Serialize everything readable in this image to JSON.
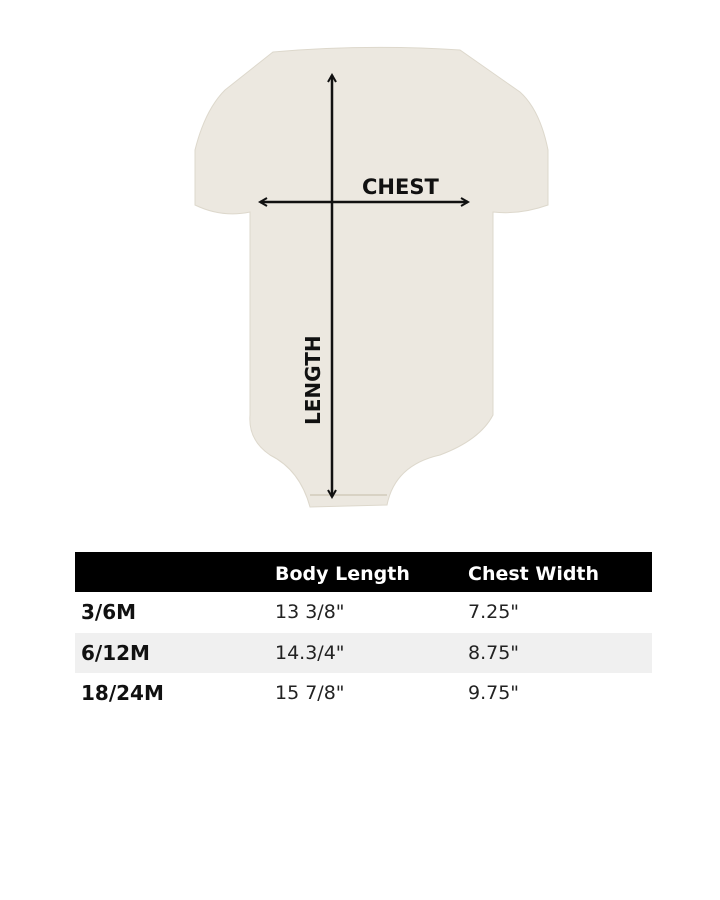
{
  "diagram": {
    "garment_color": "#ece8e0",
    "labels": {
      "chest": "CHEST",
      "length": "LENGTH"
    }
  },
  "table": {
    "headers": [
      "",
      "Body Length",
      "Chest Width"
    ],
    "rows": [
      {
        "size": "3/6M",
        "body_length": "13 3/8\"",
        "chest_width": "7.25\""
      },
      {
        "size": "6/12M",
        "body_length": "14.3/4\"",
        "chest_width": "8.75\""
      },
      {
        "size": "18/24M",
        "body_length": "15 7/8\"",
        "chest_width": "9.75\""
      }
    ]
  }
}
